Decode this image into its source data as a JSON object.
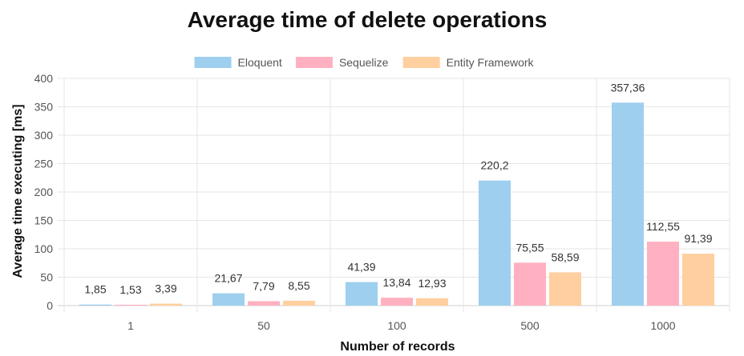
{
  "chart_data": {
    "type": "bar",
    "title": "Average time of delete operations",
    "xlabel": "Number of records",
    "ylabel": "Average time executing [ms]",
    "categories": [
      "1",
      "50",
      "100",
      "500",
      "1000"
    ],
    "ylim": [
      0,
      400
    ],
    "yticks": [
      0,
      50,
      100,
      150,
      200,
      250,
      300,
      350,
      400
    ],
    "grid": true,
    "legend_position": "top",
    "series": [
      {
        "name": "Eloquent",
        "color": "#9ecfef",
        "values": [
          1.85,
          21.67,
          41.39,
          220.2,
          357.36
        ],
        "labels": [
          "1,85",
          "21,67",
          "41,39",
          "220,2",
          "357,36"
        ]
      },
      {
        "name": "Sequelize",
        "color": "#ffb0c1",
        "values": [
          1.53,
          7.79,
          13.84,
          75.55,
          112.55
        ],
        "labels": [
          "1,53",
          "7,79",
          "13,84",
          "75,55",
          "112,55"
        ]
      },
      {
        "name": "Entity Framework",
        "color": "#ffcf9f",
        "values": [
          3.39,
          8.55,
          12.93,
          58.59,
          91.39
        ],
        "labels": [
          "3,39",
          "8,55",
          "12,93",
          "58,59",
          "91,39"
        ]
      }
    ]
  }
}
